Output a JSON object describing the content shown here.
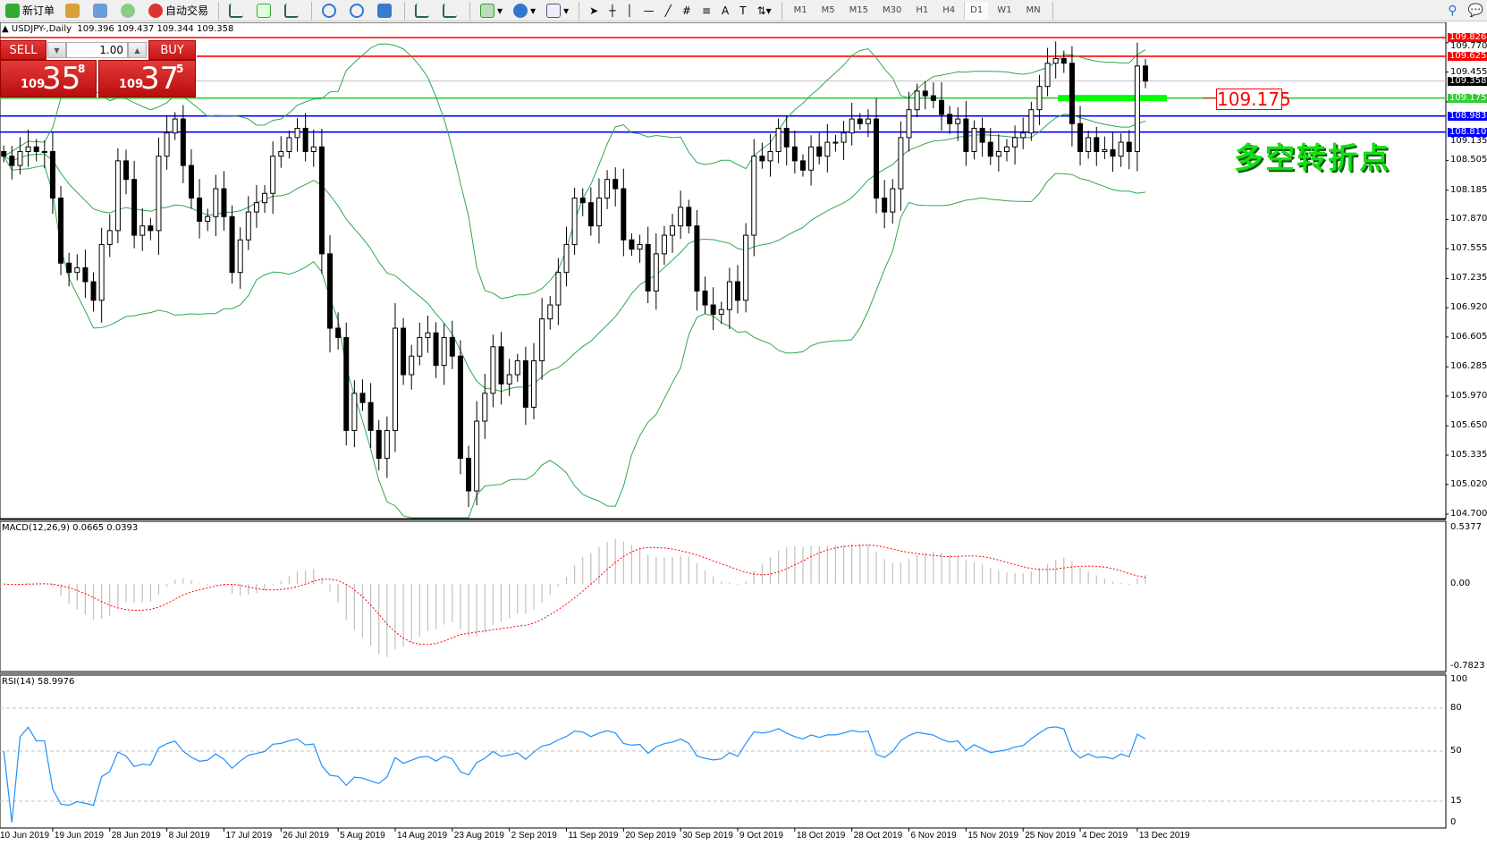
{
  "toolbar": {
    "new_order": "新订单",
    "auto_trading": "自动交易",
    "timeframes": [
      "M1",
      "M5",
      "M15",
      "M30",
      "H1",
      "H4",
      "D1",
      "W1",
      "MN"
    ],
    "active_timeframe": "D1",
    "icons": [
      "market-watch-icon",
      "navigator-icon",
      "signals-icon",
      "bar-chart-icon",
      "candlestick-icon",
      "line-chart-icon",
      "zoom-in-icon",
      "zoom-out-icon",
      "tile-windows-icon",
      "auto-scroll-icon",
      "chart-shift-icon",
      "indicators-icon",
      "periods-icon",
      "templates-icon",
      "cursor-icon",
      "crosshair-icon",
      "vertical-line-icon",
      "horizontal-line-icon",
      "trendline-icon",
      "fibo-channel-icon",
      "fibo-icon",
      "text-icon",
      "text-label-icon",
      "arrows-icon",
      "search-icon",
      "chat-icon"
    ]
  },
  "symbol_header": {
    "symbol": "USDJPY-,Daily",
    "ohlc": "109.396 109.437 109.344 109.358"
  },
  "trade_panel": {
    "sell_label": "SELL",
    "buy_label": "BUY",
    "lots": "1.00",
    "sell_price": {
      "big_figure": "109",
      "pips": "35",
      "fraction": "8"
    },
    "buy_price": {
      "big_figure": "109",
      "pips": "37",
      "fraction": "5"
    }
  },
  "colors": {
    "bull": "#ffffff",
    "bear": "#000000",
    "bands": "#2fa84f",
    "resistance": "#ff0000",
    "pivot": "#33cc33",
    "support": "#0000ff",
    "current": "#c0c0c0",
    "macd_hist": "#c0c0c0",
    "macd_signal": "#ff0000",
    "rsi": "#1e90ff"
  },
  "lines": [
    {
      "price": "109.826",
      "color": "#ff0000",
      "type": "resistance"
    },
    {
      "price": "109.625",
      "color": "#ff0000",
      "type": "resistance"
    },
    {
      "price": "109.358",
      "color": "#000000",
      "type": "current"
    },
    {
      "price": "109.175",
      "color": "#33cc33",
      "type": "pivot"
    },
    {
      "price": "108.983",
      "color": "#0000ff",
      "type": "support"
    },
    {
      "price": "108.810",
      "color": "#0000ff",
      "type": "support"
    }
  ],
  "annotations": {
    "pivot_price": "109.175",
    "note": "多空转折点"
  },
  "price_axis": [
    "109.770",
    "109.455",
    "109.135",
    "108.505",
    "108.185",
    "107.870",
    "107.555",
    "107.235",
    "106.920",
    "106.605",
    "106.285",
    "105.970",
    "105.650",
    "105.335",
    "105.020",
    "104.700"
  ],
  "macd": {
    "label": "MACD(12,26,9) 0.0665 0.0393",
    "axis": [
      "0.5377",
      "0.00",
      "-0.7823"
    ]
  },
  "rsi": {
    "label": "RSI(14) 58.9976",
    "axis": [
      "100",
      "80",
      "50",
      "15",
      "0"
    ],
    "levels": [
      80,
      50,
      15
    ]
  },
  "chart_data": {
    "type": "candlestick",
    "symbol": "USDJPY",
    "timeframe": "Daily",
    "ylim": [
      104.7,
      109.826
    ],
    "dates": [
      "10 Jun 2019",
      "19 Jun 2019",
      "28 Jun 2019",
      "8 Jul 2019",
      "17 Jul 2019",
      "26 Jul 2019",
      "5 Aug 2019",
      "14 Aug 2019",
      "23 Aug 2019",
      "2 Sep 2019",
      "11 Sep 2019",
      "20 Sep 2019",
      "30 Sep 2019",
      "9 Oct 2019",
      "18 Oct 2019",
      "28 Oct 2019",
      "6 Nov 2019",
      "15 Nov 2019",
      "25 Nov 2019",
      "4 Dec 2019",
      "13 Dec 2019"
    ],
    "closes": [
      108.55,
      108.45,
      108.6,
      108.65,
      108.6,
      108.6,
      108.1,
      107.4,
      107.3,
      107.35,
      107.2,
      107.0,
      107.6,
      107.75,
      108.5,
      108.3,
      107.7,
      107.8,
      107.75,
      108.55,
      108.8,
      108.95,
      108.45,
      108.1,
      107.85,
      107.9,
      108.2,
      107.9,
      107.3,
      107.65,
      107.95,
      108.05,
      108.15,
      108.55,
      108.6,
      108.75,
      108.85,
      108.6,
      108.65,
      107.5,
      106.7,
      106.6,
      105.6,
      106.0,
      105.9,
      105.6,
      105.3,
      105.6,
      106.7,
      106.2,
      106.4,
      106.6,
      106.65,
      106.3,
      106.6,
      106.4,
      105.3,
      104.95,
      105.7,
      106.0,
      106.5,
      106.1,
      106.2,
      106.35,
      105.85,
      106.35,
      106.8,
      106.95,
      107.3,
      107.6,
      108.1,
      108.05,
      107.8,
      108.1,
      108.3,
      108.2,
      107.65,
      107.55,
      107.6,
      107.1,
      107.5,
      107.7,
      107.8,
      108.0,
      107.8,
      107.1,
      106.95,
      106.85,
      106.9,
      107.2,
      107.0,
      107.7,
      108.55,
      108.5,
      108.6,
      108.85,
      108.65,
      108.5,
      108.4,
      108.65,
      108.55,
      108.7,
      108.7,
      108.8,
      108.95,
      108.9,
      108.95,
      108.1,
      107.95,
      108.2,
      108.75,
      109.05,
      109.25,
      109.2,
      109.15,
      109.0,
      108.9,
      108.95,
      108.6,
      108.85,
      108.7,
      108.55,
      108.6,
      108.65,
      108.75,
      108.8,
      109.05,
      109.3,
      109.55,
      109.6,
      109.55,
      108.9,
      108.6,
      108.75,
      108.6,
      108.62,
      108.55,
      108.7,
      108.6,
      109.52,
      109.358
    ],
    "indicators": [
      "Bollinger Bands",
      "MACD(12,26,9)",
      "RSI(14)"
    ]
  }
}
